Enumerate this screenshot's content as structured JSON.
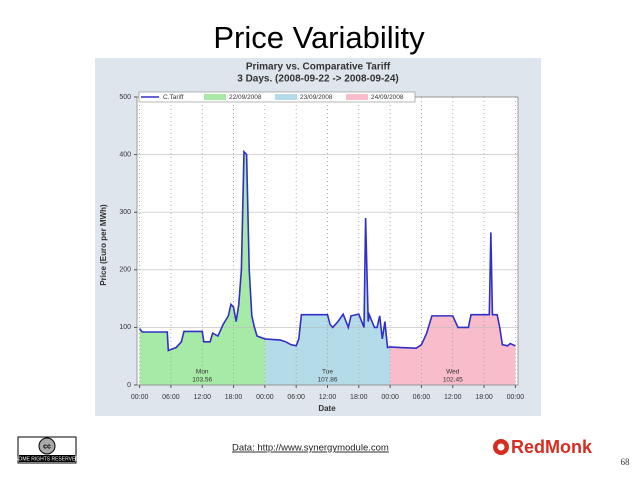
{
  "slide": {
    "title": "Price Variability",
    "source": "Data: http://www.synergymodule.com",
    "page_number": "68",
    "license": "SOME RIGHTS RESERVED",
    "logo": "RedMonk"
  },
  "chart_data": {
    "type": "line",
    "title": "Primary vs. Comparative Tariff",
    "subtitle": "3 Days. (2008-09-22 -> 2008-09-24)",
    "x_label": "Date",
    "y_label": "Price (Euro per MWh)",
    "xlim": [
      -0.5,
      72.5
    ],
    "ylim": [
      0,
      500
    ],
    "xticks": [
      {
        "value": 0,
        "label": "00:00"
      },
      {
        "value": 6,
        "label": "06:00"
      },
      {
        "value": 12,
        "label": "12:00"
      },
      {
        "value": 18,
        "label": "18:00"
      },
      {
        "value": 24,
        "label": "00:00"
      },
      {
        "value": 30,
        "label": "06:00"
      },
      {
        "value": 36,
        "label": "12:00"
      },
      {
        "value": 42,
        "label": "18:00"
      },
      {
        "value": 48,
        "label": "00:00"
      },
      {
        "value": 54,
        "label": "06:00"
      },
      {
        "value": 60,
        "label": "12:00"
      },
      {
        "value": 66,
        "label": "18:00"
      },
      {
        "value": 72,
        "label": "00:00"
      }
    ],
    "yticks": [
      0,
      100,
      200,
      300,
      400,
      500
    ],
    "grid": true,
    "series": [
      {
        "name": "C.Tariff",
        "color": "#3030c8",
        "x": [
          0,
          0.5,
          5.3,
          5.5,
          7,
          8,
          8.5,
          12,
          12.3,
          13.5,
          14,
          15,
          15.5,
          16,
          17,
          17.5,
          18,
          18.5,
          19,
          19.5,
          20,
          20.5,
          21,
          21.5,
          22,
          22.5,
          24,
          27,
          28,
          29,
          30,
          30.5,
          31,
          35,
          36,
          36.5,
          37,
          38,
          39,
          40,
          40.5,
          42,
          43,
          43.3,
          43.8,
          44,
          45,
          45.5,
          46,
          46.5,
          47,
          47.5,
          48,
          50,
          53,
          54,
          55,
          56,
          60,
          61,
          63,
          63.5,
          67,
          67.3,
          67.6,
          68.5,
          69,
          69.5,
          70.5,
          71,
          72
        ],
        "values": [
          98,
          92,
          92,
          60,
          65,
          75,
          93,
          93,
          75,
          75,
          90,
          85,
          95,
          105,
          120,
          140,
          135,
          110,
          140,
          200,
          405,
          400,
          200,
          120,
          100,
          85,
          80,
          78,
          75,
          70,
          68,
          80,
          122,
          122,
          122,
          105,
          100,
          110,
          123,
          100,
          120,
          123,
          100,
          290,
          110,
          122,
          100,
          100,
          120,
          80,
          110,
          65,
          66,
          65,
          64,
          70,
          90,
          120,
          120,
          100,
          100,
          122,
          122,
          265,
          122,
          122,
          100,
          70,
          68,
          72,
          68
        ]
      }
    ],
    "days": [
      {
        "name": "22/09/2008",
        "color": "#a6eaa6",
        "xrange": [
          0,
          24
        ],
        "label": "Mon",
        "average": 103.56
      },
      {
        "name": "23/09/2008",
        "color": "#b4dbe8",
        "xrange": [
          24,
          48
        ],
        "label": "Tue",
        "average": 107.86
      },
      {
        "name": "24/09/2008",
        "color": "#f9bccb",
        "xrange": [
          48,
          72
        ],
        "label": "Wed",
        "average": 102.45
      }
    ]
  }
}
